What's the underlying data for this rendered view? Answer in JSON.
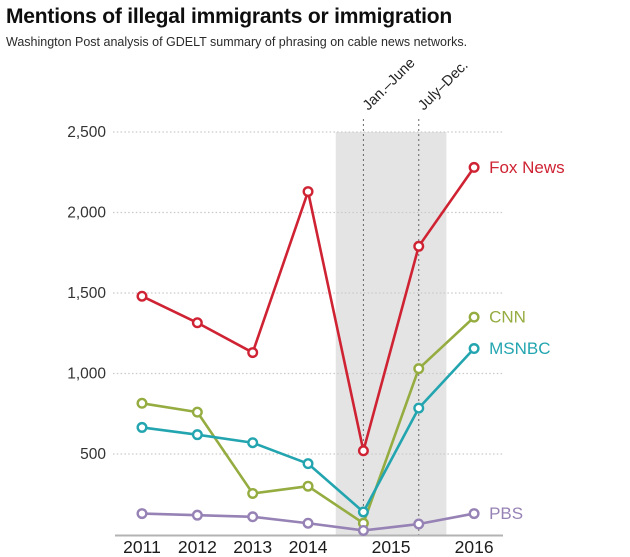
{
  "header": {
    "title": "Mentions of illegal immigrants or immigration",
    "subtitle": "Washington Post analysis of GDELT summary of phrasing on cable news networks."
  },
  "chart_data": {
    "type": "line",
    "x_labels": [
      "2011",
      "2012",
      "2013",
      "2014",
      "2015",
      "2016"
    ],
    "points_x": [
      "2011",
      "2012",
      "2013",
      "2014",
      "2015 Jan.–June",
      "2015 July–Dec.",
      "2016"
    ],
    "series": [
      {
        "name": "Fox News",
        "color": "#cf2333",
        "values": [
          1480,
          1315,
          1130,
          2130,
          520,
          1790,
          2280
        ]
      },
      {
        "name": "CNN",
        "color": "#95ac40",
        "values": [
          815,
          760,
          255,
          300,
          70,
          1030,
          1350
        ]
      },
      {
        "name": "MSNBC",
        "color": "#23a5b0",
        "values": [
          665,
          620,
          570,
          440,
          140,
          785,
          1155
        ]
      },
      {
        "name": "PBS",
        "color": "#9682b5",
        "values": [
          130,
          120,
          110,
          70,
          25,
          65,
          130
        ]
      }
    ],
    "y_ticks": [
      500,
      1000,
      1500,
      2000,
      2500
    ],
    "y_tick_labels": [
      "500",
      "1,000",
      "1,500",
      "2,000",
      "2,500"
    ],
    "ylim": [
      0,
      2500
    ],
    "grid": "horizontal-dotted",
    "legend_position": "right-of-line-ends",
    "annotations": {
      "highlight_band": {
        "from_x_index": 3.5,
        "to_x_index": 5.5,
        "color": "#e4e4e4"
      },
      "dotted_lines": [
        {
          "x_index": 4,
          "label": "Jan.–June"
        },
        {
          "x_index": 5,
          "label": "July–Dec."
        }
      ]
    },
    "colors": {
      "grid": "#c9c9c9",
      "axis": "#b3b3b3",
      "tick_text": "#333333",
      "annotation_text": "#222222"
    }
  }
}
